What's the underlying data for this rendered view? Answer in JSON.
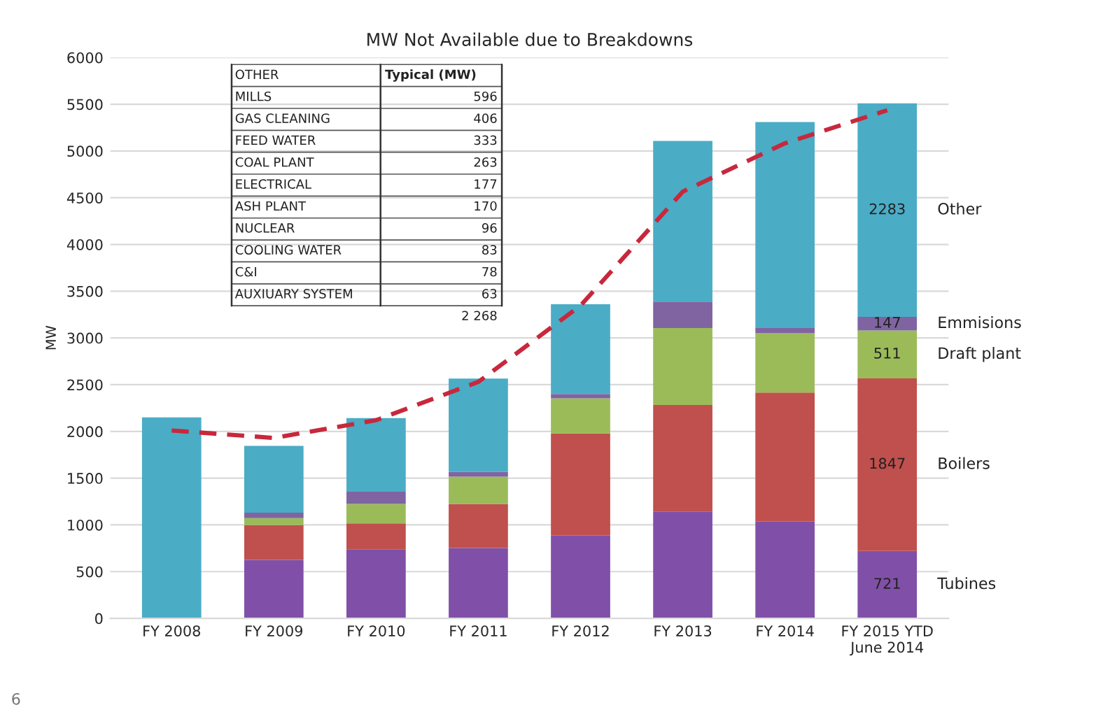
{
  "chart_data": {
    "type": "bar",
    "stacked": true,
    "title": "MW Not Available due to Breakdowns",
    "ylabel": "MW",
    "categories": [
      "FY 2008",
      "FY 2009",
      "FY 2010",
      "FY 2011",
      "FY 2012",
      "FY 2013",
      "FY 2014",
      "FY 2015 YTD\nJune 2014"
    ],
    "series": [
      {
        "name": "Tubines",
        "color": "#8050a8",
        "values": [
          null,
          625,
          740,
          753,
          885,
          1144,
          1035,
          721
        ],
        "value_labels": [
          null,
          null,
          null,
          null,
          null,
          null,
          null,
          "721"
        ]
      },
      {
        "name": "Boilers",
        "color": "#c0504d",
        "values": [
          null,
          373,
          277,
          471,
          1092,
          1139,
          1380,
          1847
        ],
        "value_labels": [
          null,
          null,
          null,
          null,
          null,
          null,
          null,
          "1847"
        ]
      },
      {
        "name": "Draft plant",
        "color": "#9bbb59",
        "values": [
          null,
          75,
          207,
          291,
          377,
          823,
          635,
          511
        ],
        "value_labels": [
          null,
          null,
          null,
          null,
          null,
          null,
          null,
          "511"
        ]
      },
      {
        "name": "Emmisions",
        "color": "#8064a2",
        "values": [
          null,
          57,
          131,
          52,
          46,
          283,
          56,
          147
        ],
        "value_labels": [
          null,
          null,
          null,
          null,
          null,
          null,
          null,
          "147"
        ]
      },
      {
        "name": "Other",
        "color": "#4bacc6",
        "values": [
          2150,
          715,
          787,
          999,
          960,
          1719,
          2203,
          2283
        ],
        "value_labels": [
          null,
          null,
          null,
          null,
          null,
          null,
          null,
          "2283"
        ]
      },
      {
        "type": "line",
        "color": "#c8283c",
        "line_style": "dashed",
        "values": [
          2010,
          1930,
          2120,
          2530,
          3346,
          4565,
          5083,
          5436
        ]
      }
    ],
    "ylim": [
      0,
      6000
    ],
    "yticks": [
      0,
      500,
      1000,
      1500,
      2000,
      2500,
      3000,
      3500,
      4000,
      4500,
      5000,
      5500,
      6000
    ],
    "grid": "y",
    "legend": false,
    "annotations": [
      "OTHER",
      "Typical (MW)",
      "MILLS",
      "596",
      "GAS CLEANING",
      "406",
      "FEED WATER",
      "333",
      "COAL PLANT",
      "263",
      "ELECTRICAL",
      "177",
      "ASH PLANT",
      "170",
      "NUCLEAR",
      "96",
      "COOLING WATER",
      "83",
      "C&I",
      "78",
      "AUXIUARY SYSTEM",
      "63",
      "2 268",
      "6"
    ]
  }
}
